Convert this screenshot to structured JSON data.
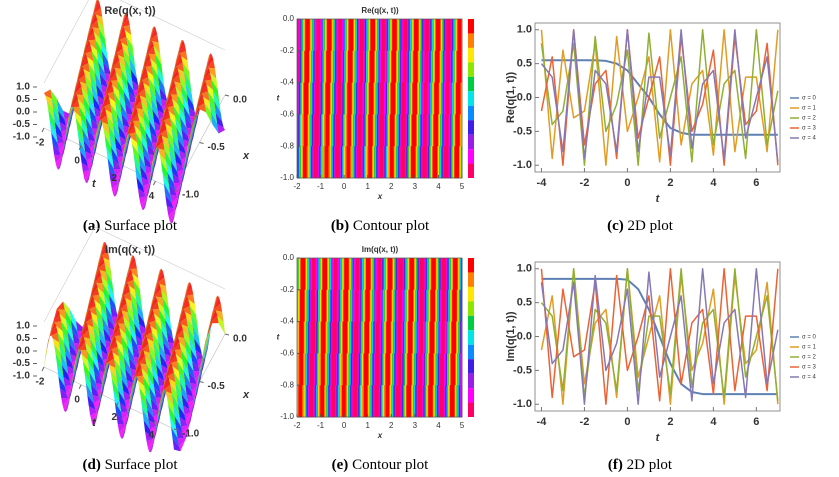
{
  "chart_data": [
    {
      "type": "surface",
      "title": "Re(q(x, t))",
      "t_label": "t",
      "x_label": "x",
      "zlim": [
        -1,
        1
      ],
      "zticks": [
        {
          "value": 1,
          "label": "1.0"
        },
        0.5,
        {
          "value": 0,
          "label": "0.0"
        },
        -0.5,
        {
          "value": -1,
          "label": "-1.0"
        }
      ],
      "tlim": [
        -2,
        5
      ],
      "tticks": [
        -2,
        0,
        2,
        4
      ],
      "xlim": [
        -1,
        0
      ],
      "xticks": [
        {
          "value": 0,
          "label": "0.0"
        },
        -0.5,
        {
          "value": -1,
          "label": "-1.0"
        }
      ],
      "caption_label": "(a)",
      "caption": "Surface plot"
    },
    {
      "type": "contour",
      "title": "Re(q(x, t))",
      "x_label": "x",
      "y_label": "t",
      "xlim": [
        -2,
        5
      ],
      "xticks": [
        -2,
        -1,
        0,
        1,
        2,
        3,
        4,
        5
      ],
      "ylim": [
        -1,
        0
      ],
      "yticks": [
        {
          "value": 0,
          "label": "0.0"
        },
        -0.2,
        -0.4,
        -0.6,
        -0.8,
        {
          "value": -1,
          "label": "-1.0"
        }
      ],
      "caption_label": "(b)",
      "caption": "Contour plot"
    },
    {
      "type": "line",
      "x_label": "t",
      "y_label": "Re(q(1, t))",
      "x": [
        -4,
        -3.5,
        -3,
        -2.5,
        -2,
        -1.5,
        -1,
        -0.5,
        0,
        0.5,
        1,
        1.5,
        2,
        2.5,
        3,
        3.5,
        4,
        4.5,
        5,
        5.5,
        6,
        6.5,
        7
      ],
      "xlim": [
        -4.3,
        7.1
      ],
      "xticks": [
        -4,
        -2,
        0,
        2,
        4,
        6
      ],
      "ylim": [
        -1.1,
        1.1
      ],
      "yticks": [
        {
          "value": -1,
          "label": "-1.0"
        },
        -0.5,
        {
          "value": 0,
          "label": "0.0"
        },
        0.5,
        {
          "value": 1,
          "label": "1.0"
        }
      ],
      "legend": "right",
      "series": [
        {
          "name": "σ = 0",
          "color": "#5e81b5",
          "values": [
            0.55,
            0.55,
            0.55,
            0.55,
            0.55,
            0.55,
            0.54,
            0.5,
            0.4,
            0.2,
            0,
            -0.25,
            -0.45,
            -0.52,
            -0.55,
            -0.55,
            -0.55,
            -0.55,
            -0.55,
            -0.55,
            -0.55,
            -0.55,
            -0.55
          ]
        },
        {
          "name": "σ = 1",
          "color": "#e19c24",
          "values": [
            1,
            -0.9,
            0.7,
            -0.3,
            -0.2,
            0.8,
            -1,
            0.9,
            -0.5,
            0,
            0.6,
            -0.95,
            1,
            -0.7,
            0.2,
            0.4,
            -0.85,
            1,
            -0.8,
            0.3,
            0.3,
            -0.8,
            1
          ]
        },
        {
          "name": "σ = 2",
          "color": "#8fb032",
          "values": [
            0.8,
            -0.4,
            -0.2,
            0.8,
            -1,
            0.9,
            -0.5,
            -0.1,
            0.7,
            -1,
            0.95,
            -0.6,
            0,
            0.6,
            -0.95,
            1,
            -0.7,
            0.2,
            0.4,
            -0.9,
            1,
            -0.7,
            0.1
          ]
        },
        {
          "name": "σ = 3",
          "color": "#eb6235",
          "values": [
            -0.2,
            0.6,
            -1,
            1,
            -0.7,
            0.2,
            0.4,
            -0.9,
            1,
            -0.6,
            0,
            0.6,
            -1,
            0.9,
            -0.5,
            -0.1,
            0.7,
            -1,
            0.9,
            -0.4,
            -0.2,
            0.8,
            -1
          ]
        },
        {
          "name": "σ = 4",
          "color": "#8778b3",
          "values": [
            0.5,
            0.3,
            -0.8,
            1,
            -0.9,
            0.4,
            0.2,
            -0.8,
            1,
            -0.8,
            0.3,
            0.3,
            -0.85,
            1,
            -0.75,
            0.2,
            0.4,
            -0.9,
            1,
            -0.6,
            0,
            0.6,
            -0.95
          ]
        }
      ],
      "caption_label": "(c)",
      "caption": "2D plot"
    },
    {
      "type": "surface",
      "title": "Im(q(x, t))",
      "t_label": "t",
      "x_label": "x",
      "zlim": [
        -1,
        1
      ],
      "zticks": [
        {
          "value": 1,
          "label": "1.0"
        },
        0.5,
        {
          "value": 0,
          "label": "0.0"
        },
        -0.5,
        {
          "value": -1,
          "label": "-1.0"
        }
      ],
      "tlim": [
        -2,
        5
      ],
      "tticks": [
        -2,
        0,
        2,
        4
      ],
      "xlim": [
        -1,
        0
      ],
      "xticks": [
        {
          "value": 0,
          "label": "0.0"
        },
        -0.5,
        {
          "value": -1,
          "label": "-1.0"
        }
      ],
      "caption_label": "(d)",
      "caption": "Surface plot"
    },
    {
      "type": "contour",
      "title": "Im(q(x, t))",
      "x_label": "x",
      "y_label": "t",
      "xlim": [
        -2,
        5
      ],
      "xticks": [
        -2,
        -1,
        0,
        1,
        2,
        3,
        4,
        5
      ],
      "ylim": [
        -1,
        0
      ],
      "yticks": [
        {
          "value": 0,
          "label": "0.0"
        },
        -0.2,
        -0.4,
        -0.6,
        -0.8,
        {
          "value": -1,
          "label": "-1.0"
        }
      ],
      "caption_label": "(e)",
      "caption": "Contour plot"
    },
    {
      "type": "line",
      "x_label": "t",
      "y_label": "Im(q(1, t))",
      "x": [
        -4,
        -3.5,
        -3,
        -2.5,
        -2,
        -1.5,
        -1,
        -0.5,
        0,
        0.5,
        1,
        1.5,
        2,
        2.5,
        3,
        3.5,
        4,
        4.5,
        5,
        5.5,
        6,
        6.5,
        7
      ],
      "xlim": [
        -4.3,
        7.1
      ],
      "xticks": [
        -4,
        -2,
        0,
        2,
        4,
        6
      ],
      "ylim": [
        -1.1,
        1.1
      ],
      "yticks": [
        {
          "value": -1,
          "label": "-1.0"
        },
        -0.5,
        {
          "value": 0,
          "label": "0.0"
        },
        0.5,
        {
          "value": 1,
          "label": "1.0"
        }
      ],
      "legend": "right",
      "series": [
        {
          "name": "σ = 0",
          "color": "#5e81b5",
          "values": [
            0.85,
            0.85,
            0.85,
            0.85,
            0.85,
            0.85,
            0.85,
            0.85,
            0.84,
            0.7,
            0.4,
            0,
            -0.4,
            -0.7,
            -0.82,
            -0.85,
            -0.85,
            -0.85,
            -0.85,
            -0.85,
            -0.85,
            -0.85,
            -0.85
          ]
        },
        {
          "name": "σ = 1",
          "color": "#e19c24",
          "values": [
            -0.2,
            0.6,
            -1,
            1,
            -0.7,
            0.2,
            0.4,
            -0.9,
            1,
            -0.6,
            0,
            0.6,
            -1,
            0.9,
            -0.5,
            -0.1,
            0.7,
            -1,
            0.9,
            -0.4,
            -0.2,
            0.8,
            -1
          ]
        },
        {
          "name": "σ = 2",
          "color": "#8fb032",
          "values": [
            0.5,
            0.3,
            -0.8,
            1,
            -0.9,
            0.4,
            0.2,
            -0.8,
            1,
            -0.8,
            0.3,
            0.3,
            -0.85,
            1,
            -0.75,
            0.2,
            0.4,
            -0.9,
            1,
            -0.6,
            0,
            0.6,
            -0.95
          ]
        },
        {
          "name": "σ = 3",
          "color": "#eb6235",
          "values": [
            1,
            -0.9,
            0.7,
            -0.3,
            -0.2,
            0.8,
            -1,
            0.9,
            -0.5,
            0,
            0.6,
            -0.95,
            1,
            -0.7,
            0.2,
            0.4,
            -0.85,
            1,
            -0.8,
            0.3,
            0.3,
            -0.8,
            1
          ]
        },
        {
          "name": "σ = 4",
          "color": "#8778b3",
          "values": [
            0.8,
            -0.4,
            -0.2,
            0.8,
            -1,
            0.9,
            -0.5,
            -0.1,
            0.7,
            -1,
            0.95,
            -0.6,
            0,
            0.6,
            -0.95,
            1,
            -0.7,
            0.2,
            0.4,
            -0.9,
            1,
            -0.7,
            0.1
          ]
        }
      ],
      "caption_label": "(f)",
      "caption": "2D plot"
    }
  ]
}
